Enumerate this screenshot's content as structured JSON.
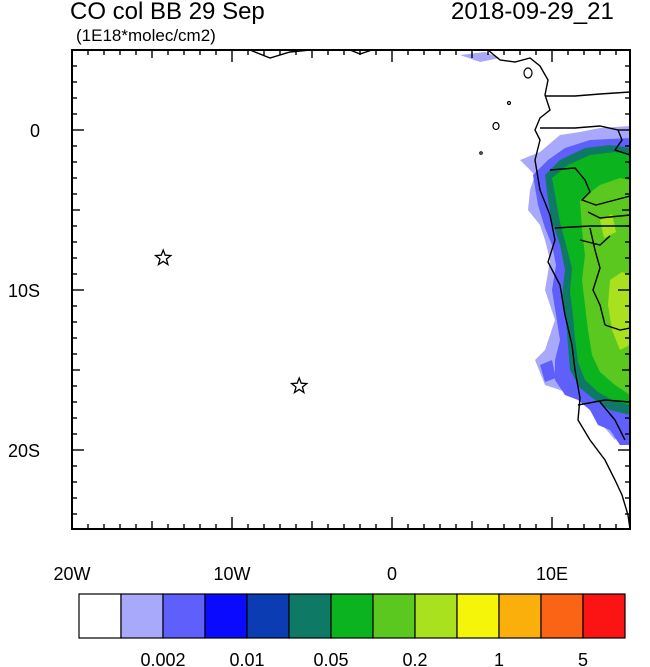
{
  "title": {
    "left": "CO col BB 29 Sep",
    "units": "(1E18*molec/cm2)",
    "right": "2018-09-29_21"
  },
  "axes": {
    "x_ticks": [
      {
        "value": -20,
        "label": "20W"
      },
      {
        "value": -10,
        "label": "10W"
      },
      {
        "value": 0,
        "label": "0"
      },
      {
        "value": 10,
        "label": "10E"
      }
    ],
    "y_ticks": [
      {
        "value": 0,
        "label": "0"
      },
      {
        "value": -10,
        "label": "10S"
      },
      {
        "value": -20,
        "label": "20S"
      }
    ],
    "lon_range": [
      -20,
      15
    ],
    "lat_range": [
      -25,
      5
    ]
  },
  "markers": [
    {
      "name": "star",
      "lon": -14.3,
      "lat": -8.0
    },
    {
      "name": "star",
      "lon": -5.8,
      "lat": -16.0
    }
  ],
  "colorbar": {
    "colors": [
      "#ffffff",
      "#a9a9fb",
      "#5f5ffb",
      "#0a0aff",
      "#0c3cb4",
      "#0e7a66",
      "#0bb41e",
      "#5ac81e",
      "#aae11e",
      "#f5f50a",
      "#faaf0a",
      "#fa6414",
      "#fa1414"
    ],
    "labels": [
      {
        "after_box": 2,
        "text": "0.002"
      },
      {
        "after_box": 4,
        "text": "0.01"
      },
      {
        "after_box": 6,
        "text": "0.05"
      },
      {
        "after_box": 8,
        "text": "0.2"
      },
      {
        "after_box": 10,
        "text": "1"
      },
      {
        "after_box": 12,
        "text": "5"
      }
    ]
  }
}
